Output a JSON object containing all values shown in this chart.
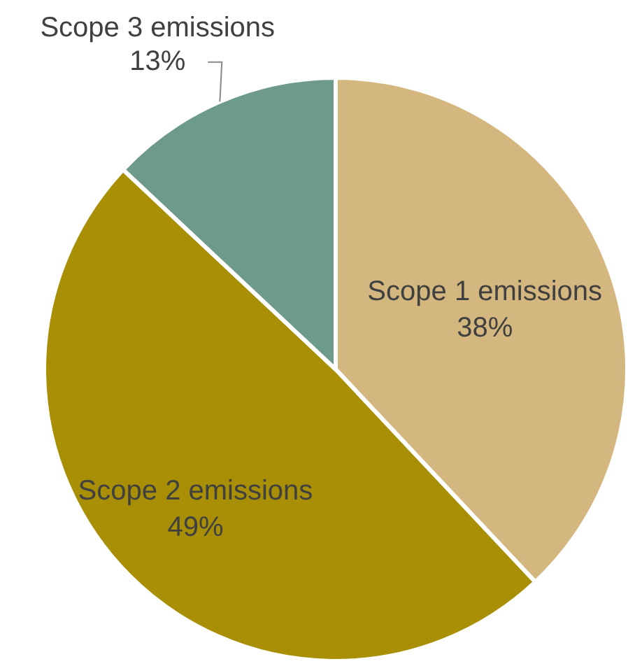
{
  "chart_data": {
    "type": "pie",
    "categories": [
      "Scope 1 emissions",
      "Scope 2 emissions",
      "Scope 3 emissions"
    ],
    "values": [
      38,
      49,
      13
    ],
    "value_labels": [
      "38%",
      "49%",
      "13%"
    ],
    "colors": [
      "#d4b77e",
      "#a88f06",
      "#6e9a8b"
    ],
    "legend": false
  }
}
